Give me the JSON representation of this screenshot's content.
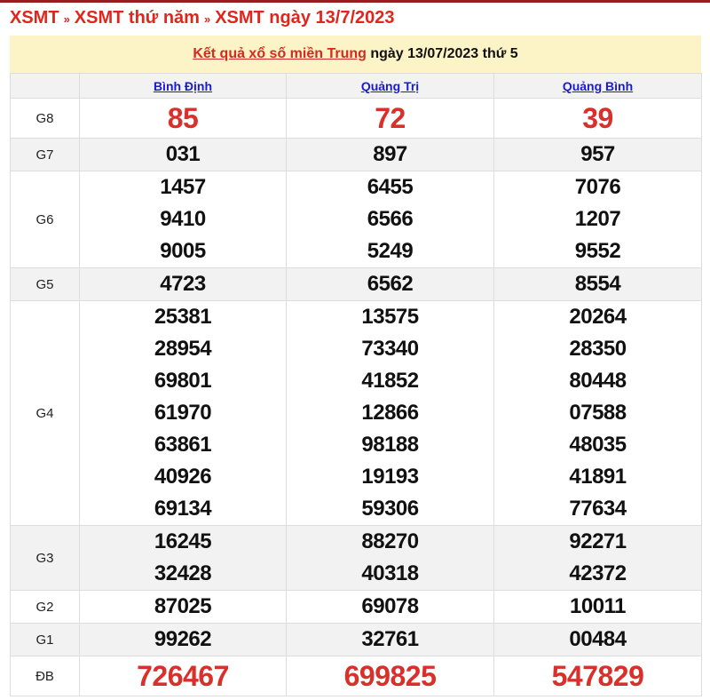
{
  "breadcrumb": [
    "XSMT",
    "XSMT thứ năm",
    "XSMT ngày 13/7/2023"
  ],
  "breadcrumb_sep": "»",
  "banner": {
    "link": "Kết quả xổ số miền Trung",
    "text": " ngày 13/07/2023 thứ 5"
  },
  "provinces": [
    "Bình Định",
    "Quảng Trị",
    "Quảng Bình"
  ],
  "colors": {
    "accent": "#e0261c",
    "banner_bg": "#fcf3c6",
    "link": "#1a1ad0"
  },
  "prizes": [
    {
      "label": "G8",
      "big": true,
      "values": [
        [
          "85"
        ],
        [
          "72"
        ],
        [
          "39"
        ]
      ]
    },
    {
      "label": "G7",
      "values": [
        [
          "031"
        ],
        [
          "897"
        ],
        [
          "957"
        ]
      ]
    },
    {
      "label": "G6",
      "values": [
        [
          "1457",
          "9410",
          "9005"
        ],
        [
          "6455",
          "6566",
          "5249"
        ],
        [
          "7076",
          "1207",
          "9552"
        ]
      ]
    },
    {
      "label": "G5",
      "values": [
        [
          "4723"
        ],
        [
          "6562"
        ],
        [
          "8554"
        ]
      ]
    },
    {
      "label": "G4",
      "values": [
        [
          "25381",
          "28954",
          "69801",
          "61970",
          "63861",
          "40926",
          "69134"
        ],
        [
          "13575",
          "73340",
          "41852",
          "12866",
          "98188",
          "19193",
          "59306"
        ],
        [
          "20264",
          "28350",
          "80448",
          "07588",
          "48035",
          "41891",
          "77634"
        ]
      ]
    },
    {
      "label": "G3",
      "values": [
        [
          "16245",
          "32428"
        ],
        [
          "88270",
          "40318"
        ],
        [
          "92271",
          "42372"
        ]
      ]
    },
    {
      "label": "G2",
      "values": [
        [
          "87025"
        ],
        [
          "69078"
        ],
        [
          "10011"
        ]
      ]
    },
    {
      "label": "G1",
      "values": [
        [
          "99262"
        ],
        [
          "32761"
        ],
        [
          "00484"
        ]
      ]
    },
    {
      "label": "ĐB",
      "big": true,
      "values": [
        [
          "726467"
        ],
        [
          "699825"
        ],
        [
          "547829"
        ]
      ]
    }
  ]
}
